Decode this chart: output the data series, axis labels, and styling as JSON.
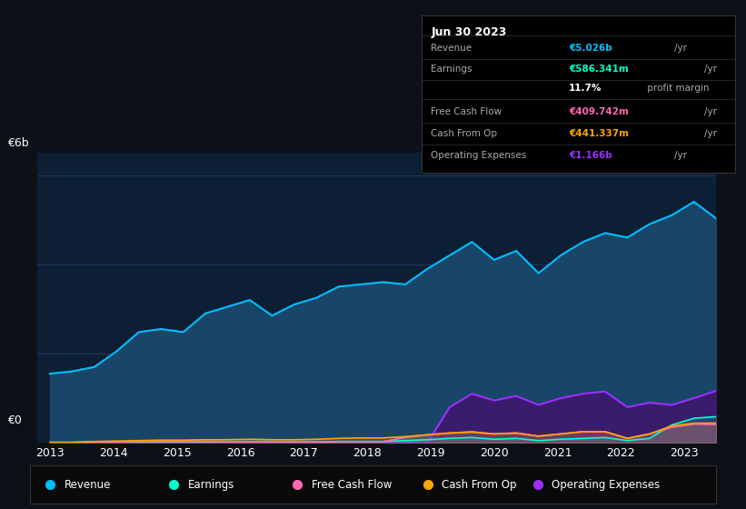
{
  "background_color": "#0d1117",
  "plot_bg_color": "#0d1f35",
  "ylabel_text": "€6b",
  "y0_text": "€0",
  "x_ticks": [
    2013,
    2014,
    2015,
    2016,
    2017,
    2018,
    2019,
    2020,
    2021,
    2022,
    2023
  ],
  "revenue_color": "#00bfff",
  "revenue_fill": "#1a4a6e",
  "earnings_color": "#00ffcc",
  "free_cash_flow_color": "#ff69b4",
  "cash_from_op_color": "#ffa500",
  "op_expenses_color": "#9b30ff",
  "op_expenses_fill": "#3d1a6e",
  "grid_color": "#1e3a5f",
  "legend_bg": "#0a0a0a",
  "legend_border": "#333333",
  "table_bg": "#000000",
  "table_border": "#333333",
  "revenue": [
    1.55,
    1.6,
    1.7,
    2.05,
    2.48,
    2.55,
    2.48,
    2.9,
    3.05,
    3.2,
    2.85,
    3.1,
    3.25,
    3.5,
    3.55,
    3.6,
    3.55,
    3.9,
    4.2,
    4.5,
    4.1,
    4.3,
    3.8,
    4.2,
    4.5,
    4.7,
    4.6,
    4.9,
    5.1,
    5.4,
    5.026
  ],
  "earnings": [
    0.01,
    0.01,
    0.02,
    0.02,
    0.02,
    0.02,
    0.02,
    0.02,
    0.02,
    0.02,
    0.02,
    0.02,
    0.02,
    0.03,
    0.03,
    0.03,
    0.05,
    0.07,
    0.1,
    0.12,
    0.08,
    0.1,
    0.05,
    0.08,
    0.1,
    0.12,
    0.05,
    0.1,
    0.4,
    0.55,
    0.586
  ],
  "free_cash_flow": [
    0.01,
    0.01,
    0.02,
    0.02,
    0.03,
    0.03,
    0.03,
    0.03,
    0.02,
    0.02,
    0.02,
    0.02,
    0.02,
    0.03,
    0.03,
    0.03,
    0.12,
    0.18,
    0.22,
    0.25,
    0.2,
    0.22,
    0.15,
    0.2,
    0.25,
    0.25,
    0.1,
    0.2,
    0.35,
    0.42,
    0.41
  ],
  "cash_from_op": [
    0.01,
    0.01,
    0.03,
    0.04,
    0.05,
    0.06,
    0.06,
    0.07,
    0.07,
    0.08,
    0.07,
    0.07,
    0.08,
    0.1,
    0.11,
    0.11,
    0.14,
    0.18,
    0.22,
    0.24,
    0.2,
    0.22,
    0.15,
    0.2,
    0.25,
    0.25,
    0.1,
    0.2,
    0.38,
    0.44,
    0.441
  ],
  "op_expenses": [
    0.0,
    0.0,
    0.0,
    0.0,
    0.0,
    0.0,
    0.0,
    0.0,
    0.0,
    0.0,
    0.0,
    0.0,
    0.0,
    0.0,
    0.0,
    0.0,
    0.0,
    0.0,
    0.8,
    1.1,
    0.95,
    1.05,
    0.85,
    1.0,
    1.1,
    1.15,
    0.8,
    0.9,
    0.85,
    1.0,
    1.166
  ],
  "n_points": 31,
  "year_start": 2013.0,
  "year_end": 2023.5,
  "table_title": "Jun 30 2023",
  "table_data": [
    {
      "label": "Revenue",
      "value": "€5.026b",
      "unit": "/yr",
      "color": "#00bfff"
    },
    {
      "label": "Earnings",
      "value": "€586.341m",
      "unit": "/yr",
      "color": "#00ffcc"
    },
    {
      "label": "",
      "value": "11.7%",
      "unit": " profit margin",
      "color": "#ffffff"
    },
    {
      "label": "Free Cash Flow",
      "value": "€409.742m",
      "unit": "/yr",
      "color": "#ff69b4"
    },
    {
      "label": "Cash From Op",
      "value": "€441.337m",
      "unit": "/yr",
      "color": "#ffa500"
    },
    {
      "label": "Operating Expenses",
      "value": "€1.166b",
      "unit": "/yr",
      "color": "#9b30ff"
    }
  ],
  "legend_items": [
    {
      "label": "Revenue",
      "color": "#00bfff"
    },
    {
      "label": "Earnings",
      "color": "#00ffcc"
    },
    {
      "label": "Free Cash Flow",
      "color": "#ff69b4"
    },
    {
      "label": "Cash From Op",
      "color": "#ffa500"
    },
    {
      "label": "Operating Expenses",
      "color": "#9b30ff"
    }
  ]
}
